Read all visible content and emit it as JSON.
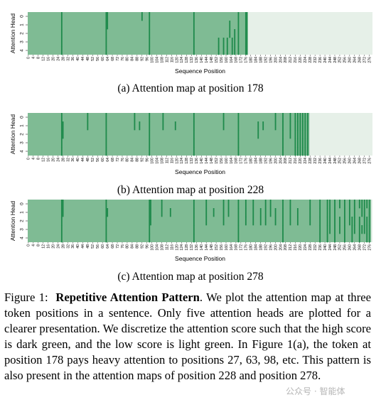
{
  "colors": {
    "low": "#7fbb94",
    "high": "#1e8a4b",
    "empty": "#e6f0e8"
  },
  "shared": {
    "ylabel": "Attention Head",
    "xlabel": "Sequence Position",
    "heads": [
      "0",
      "1",
      "2",
      "3",
      "4"
    ]
  },
  "chart_data": [
    {
      "type": "heatmap",
      "title": "(a) Attention map at position 178",
      "query_position": 178,
      "n_positions": 279,
      "xlabel": "Sequence Position",
      "ylabel": "Attention Head",
      "x_tick_step": 4,
      "y_ticks": [
        "0",
        "1",
        "2",
        "3",
        "4"
      ],
      "high_columns": [
        {
          "pos": 27,
          "heads": [
            0,
            1,
            2,
            3,
            4
          ]
        },
        {
          "pos": 63,
          "heads": [
            0,
            1,
            2,
            3,
            4
          ]
        },
        {
          "pos": 98,
          "heads": [
            0,
            1,
            2,
            3,
            4
          ]
        },
        {
          "pos": 134,
          "heads": [
            0,
            1,
            2,
            3,
            4
          ]
        },
        {
          "pos": 170,
          "heads": [
            0,
            1,
            2,
            3,
            4
          ]
        },
        {
          "pos": 64,
          "heads": [
            0,
            1
          ]
        },
        {
          "pos": 92,
          "heads": [
            0
          ]
        },
        {
          "pos": 163,
          "heads": [
            1,
            2
          ]
        },
        {
          "pos": 154,
          "heads": [
            3,
            4
          ]
        },
        {
          "pos": 158,
          "heads": [
            3,
            4
          ]
        },
        {
          "pos": 161,
          "heads": [
            3,
            4
          ]
        },
        {
          "pos": 165,
          "heads": [
            3,
            4
          ]
        },
        {
          "pos": 167,
          "heads": [
            2,
            3,
            4
          ]
        },
        {
          "pos": 176,
          "heads": [
            0,
            1,
            2,
            3,
            4
          ]
        },
        {
          "pos": 177,
          "heads": [
            0,
            1,
            2,
            3,
            4
          ]
        }
      ]
    },
    {
      "type": "heatmap",
      "title": "(b) Attention map at position 228",
      "query_position": 228,
      "n_positions": 279,
      "xlabel": "Sequence Position",
      "ylabel": "Attention Head",
      "x_tick_step": 4,
      "y_ticks": [
        "0",
        "1",
        "2",
        "3",
        "4"
      ],
      "high_columns": [
        {
          "pos": 27,
          "heads": [
            0,
            1,
            2,
            3,
            4
          ]
        },
        {
          "pos": 63,
          "heads": [
            0,
            1,
            2,
            3,
            4
          ]
        },
        {
          "pos": 98,
          "heads": [
            0,
            1,
            2,
            3,
            4
          ]
        },
        {
          "pos": 134,
          "heads": [
            0,
            1,
            2,
            3,
            4
          ]
        },
        {
          "pos": 170,
          "heads": [
            0,
            1,
            2,
            3,
            4
          ]
        },
        {
          "pos": 206,
          "heads": [
            0,
            1,
            2,
            3,
            4
          ]
        },
        {
          "pos": 28,
          "heads": [
            1,
            2
          ]
        },
        {
          "pos": 48,
          "heads": [
            0,
            1
          ]
        },
        {
          "pos": 86,
          "heads": [
            0,
            1
          ]
        },
        {
          "pos": 90,
          "heads": [
            1
          ]
        },
        {
          "pos": 109,
          "heads": [
            0,
            1
          ]
        },
        {
          "pos": 119,
          "heads": [
            1
          ]
        },
        {
          "pos": 158,
          "heads": [
            0,
            1
          ]
        },
        {
          "pos": 186,
          "heads": [
            1,
            2
          ]
        },
        {
          "pos": 190,
          "heads": [
            1
          ]
        },
        {
          "pos": 200,
          "heads": [
            0,
            1
          ]
        },
        {
          "pos": 212,
          "heads": [
            0,
            1,
            2
          ]
        },
        {
          "pos": 216,
          "heads": [
            0,
            1,
            2,
            3,
            4
          ]
        },
        {
          "pos": 218,
          "heads": [
            0,
            1,
            2,
            3,
            4
          ]
        },
        {
          "pos": 220,
          "heads": [
            0,
            1,
            2,
            3,
            4
          ]
        },
        {
          "pos": 222,
          "heads": [
            0,
            1,
            2,
            3,
            4
          ]
        },
        {
          "pos": 224,
          "heads": [
            0,
            1,
            2,
            3,
            4
          ]
        },
        {
          "pos": 226,
          "heads": [
            0,
            1,
            2,
            3,
            4
          ]
        }
      ]
    },
    {
      "type": "heatmap",
      "title": "(c) Attention map at position 278",
      "query_position": 278,
      "n_positions": 279,
      "xlabel": "Sequence Position",
      "ylabel": "Attention Head",
      "x_tick_step": 4,
      "y_ticks": [
        "0",
        "1",
        "2",
        "3",
        "4"
      ],
      "high_columns": [
        {
          "pos": 27,
          "heads": [
            0,
            1,
            2,
            3,
            4
          ]
        },
        {
          "pos": 63,
          "heads": [
            0,
            1,
            2,
            3,
            4
          ]
        },
        {
          "pos": 98,
          "heads": [
            0,
            1,
            2,
            3,
            4
          ]
        },
        {
          "pos": 134,
          "heads": [
            0,
            1,
            2,
            3,
            4
          ]
        },
        {
          "pos": 170,
          "heads": [
            0,
            1,
            2,
            3,
            4
          ]
        },
        {
          "pos": 206,
          "heads": [
            0,
            1,
            2,
            3,
            4
          ]
        },
        {
          "pos": 242,
          "heads": [
            0,
            1,
            2,
            3,
            4
          ]
        },
        {
          "pos": 28,
          "heads": [
            0,
            1
          ]
        },
        {
          "pos": 64,
          "heads": [
            1
          ]
        },
        {
          "pos": 99,
          "heads": [
            0,
            1,
            2
          ]
        },
        {
          "pos": 108,
          "heads": [
            0,
            1
          ]
        },
        {
          "pos": 115,
          "heads": [
            1
          ]
        },
        {
          "pos": 144,
          "heads": [
            0,
            1,
            2
          ]
        },
        {
          "pos": 150,
          "heads": [
            1
          ]
        },
        {
          "pos": 158,
          "heads": [
            0,
            1,
            2
          ]
        },
        {
          "pos": 162,
          "heads": [
            0,
            1
          ]
        },
        {
          "pos": 176,
          "heads": [
            0,
            1,
            2
          ]
        },
        {
          "pos": 182,
          "heads": [
            0,
            1,
            2
          ]
        },
        {
          "pos": 188,
          "heads": [
            1,
            2
          ]
        },
        {
          "pos": 192,
          "heads": [
            0,
            1,
            2
          ]
        },
        {
          "pos": 196,
          "heads": [
            0,
            1
          ]
        },
        {
          "pos": 200,
          "heads": [
            1,
            2
          ]
        },
        {
          "pos": 212,
          "heads": [
            0,
            1,
            2
          ]
        },
        {
          "pos": 218,
          "heads": [
            1,
            2
          ]
        },
        {
          "pos": 228,
          "heads": [
            0,
            1,
            2
          ]
        },
        {
          "pos": 236,
          "heads": [
            0,
            1,
            2,
            3,
            4
          ]
        },
        {
          "pos": 244,
          "heads": [
            0,
            1,
            2,
            3
          ]
        },
        {
          "pos": 248,
          "heads": [
            0,
            1,
            2,
            3,
            4
          ]
        },
        {
          "pos": 252,
          "heads": [
            0,
            2,
            3
          ]
        },
        {
          "pos": 256,
          "heads": [
            0,
            1,
            2,
            3,
            4
          ]
        },
        {
          "pos": 260,
          "heads": [
            0,
            1,
            2
          ]
        },
        {
          "pos": 262,
          "heads": [
            2,
            3,
            4
          ]
        },
        {
          "pos": 264,
          "heads": [
            0,
            1,
            2,
            3
          ]
        },
        {
          "pos": 268,
          "heads": [
            0,
            2,
            3,
            4
          ]
        },
        {
          "pos": 270,
          "heads": [
            0,
            1,
            3
          ]
        },
        {
          "pos": 272,
          "heads": [
            0,
            1,
            2,
            3
          ]
        },
        {
          "pos": 274,
          "heads": [
            0,
            2,
            3,
            4
          ]
        },
        {
          "pos": 276,
          "heads": [
            0,
            1,
            2,
            3,
            4
          ]
        }
      ]
    }
  ],
  "figure_caption": {
    "label": "Figure 1:",
    "title": "Repetitive Attention Pattern",
    "body": ". We plot the attention map at three token positions in a sentence. Only five attention heads are plotted for a clearer presentation. We discretize the attention score such that the high score is dark green, and the low score is light green. In Figure 1(a), the token at position 178 pays heavy attention to positions 27, 63, 98, etc. This pattern is also present in the attention maps of position 228 and position 278."
  },
  "watermark": "公众号 · 智能体"
}
